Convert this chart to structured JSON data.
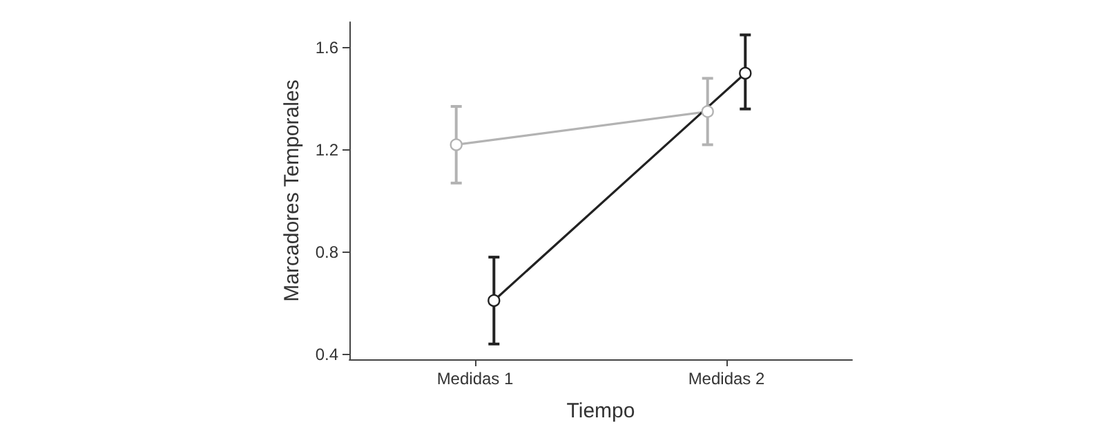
{
  "chart_data": {
    "type": "line",
    "xlabel": "Tiempo",
    "ylabel": "Marcadores Temporales",
    "categories": [
      "Medidas 1",
      "Medidas 2"
    ],
    "series": [
      {
        "color": "#b3b3b3",
        "values": [
          1.22,
          1.35
        ],
        "errors": [
          [
            1.07,
            1.37
          ],
          [
            1.22,
            1.48
          ]
        ]
      },
      {
        "color": "#222222",
        "values": [
          0.61,
          1.5
        ],
        "errors": [
          [
            0.44,
            0.78
          ],
          [
            1.36,
            1.65
          ]
        ]
      }
    ],
    "ylim": [
      0.38,
      1.7
    ],
    "yticks": [
      0.4,
      0.8,
      1.2,
      1.6
    ],
    "grid": false,
    "marker": "circle",
    "line_style": "solid"
  }
}
